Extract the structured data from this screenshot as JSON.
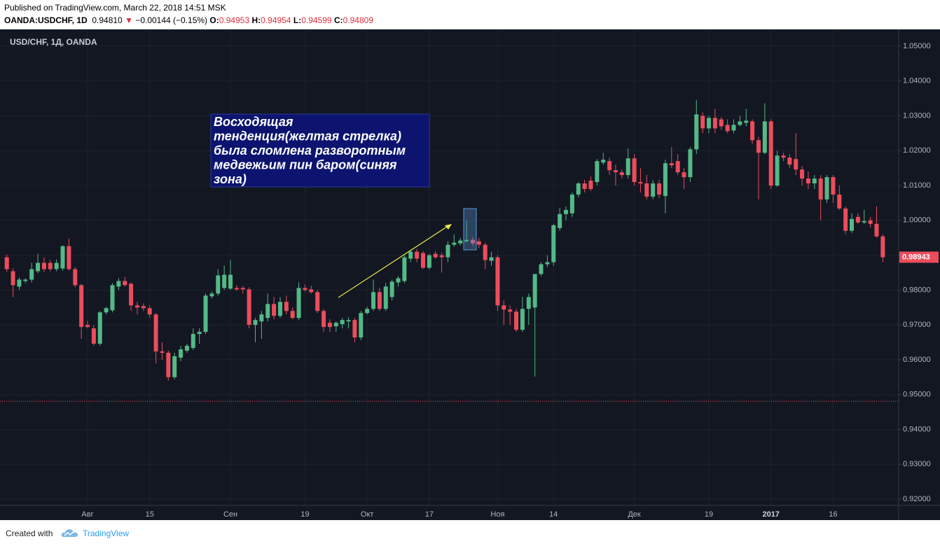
{
  "header": {
    "published": "Published on TradingView.com, March 22, 2018 14:51 MSK",
    "symbol": "OANDA:USDCHF, 1D",
    "price": "0.94810",
    "direction": "▼",
    "change": "−0.00144 (−0.15%)",
    "open_label": "O:",
    "open": "0.94953",
    "high_label": "H:",
    "high": "0.94954",
    "low_label": "L:",
    "low": "0.94599",
    "close_label": "C:",
    "close": "0.94809"
  },
  "footer": {
    "created": "Created with",
    "brand": "TradingView"
  },
  "annotation": {
    "lines": [
      "Восходящая",
      "тенденция(желтая стрелка)",
      "была сломлена разворотным",
      "медвежьим пин баром(синяя",
      "зона)"
    ]
  },
  "chart_data": {
    "type": "candlestick",
    "title": "USD/CHF, 1Д, OANDA",
    "up_color": "#53b987",
    "down_color": "#eb4d5c",
    "price_line": 0.94809,
    "price_line_color": "#eb4d5c",
    "ylim": [
      0.9182,
      1.0544
    ],
    "yticks": [
      {
        "value": 0.92,
        "label": "0.92000"
      },
      {
        "value": 0.93,
        "label": "0.93000"
      },
      {
        "value": 0.94,
        "label": "0.94000"
      },
      {
        "value": 0.95,
        "label": "0.95000"
      },
      {
        "value": 0.96,
        "label": "0.96000"
      },
      {
        "value": 0.97,
        "label": "0.97000"
      },
      {
        "value": 0.98,
        "label": "0.98000"
      },
      {
        "value": 0.99,
        "label": "0.99000"
      },
      {
        "value": 1.0,
        "label": "1.00000"
      },
      {
        "value": 1.01,
        "label": "1.01000"
      },
      {
        "value": 1.02,
        "label": "1.02000"
      },
      {
        "value": 1.03,
        "label": "1.03000"
      },
      {
        "value": 1.04,
        "label": "1.04000"
      },
      {
        "value": 1.05,
        "label": "1.05000"
      }
    ],
    "categories": [
      null,
      null,
      null,
      null,
      null,
      null,
      null,
      null,
      null,
      null,
      null,
      null,
      null,
      "Авг",
      null,
      null,
      null,
      null,
      null,
      null,
      null,
      null,
      null,
      "15",
      null,
      null,
      null,
      null,
      null,
      null,
      null,
      null,
      null,
      null,
      null,
      null,
      "Сен",
      null,
      null,
      null,
      null,
      null,
      null,
      null,
      null,
      null,
      null,
      null,
      "19",
      null,
      null,
      null,
      null,
      null,
      null,
      null,
      null,
      null,
      "Окт",
      null,
      null,
      null,
      null,
      null,
      null,
      null,
      null,
      null,
      "17",
      null,
      null,
      null,
      null,
      null,
      null,
      null,
      null,
      null,
      null,
      "Ноя",
      null,
      null,
      null,
      null,
      null,
      null,
      null,
      null,
      "14",
      null,
      null,
      null,
      null,
      null,
      null,
      null,
      null,
      null,
      null,
      null,
      null,
      "Дек",
      null,
      null,
      null,
      null,
      null,
      null,
      null,
      null,
      null,
      null,
      null,
      "19",
      null,
      null,
      null,
      null,
      null,
      null,
      null,
      null,
      null,
      "2017",
      null,
      null,
      null,
      null,
      null,
      null,
      null,
      null,
      null,
      "16",
      null,
      null,
      null,
      null,
      null,
      null,
      null,
      null
    ],
    "ohlc": [
      [
        0.9894,
        0.9902,
        0.9852,
        0.986
      ],
      [
        0.9854,
        0.9862,
        0.978,
        0.9814
      ],
      [
        0.981,
        0.9836,
        0.98,
        0.983
      ],
      [
        0.9826,
        0.9834,
        0.982,
        0.983
      ],
      [
        0.983,
        0.9878,
        0.9822,
        0.986
      ],
      [
        0.9854,
        0.9904,
        0.9848,
        0.9878
      ],
      [
        0.9878,
        0.9894,
        0.9852,
        0.986
      ],
      [
        0.9878,
        0.9886,
        0.9854,
        0.986
      ],
      [
        0.986,
        0.9888,
        0.9854,
        0.9878
      ],
      [
        0.9862,
        0.9928,
        0.9856,
        0.9926
      ],
      [
        0.9926,
        0.9948,
        0.9856,
        0.986
      ],
      [
        0.986,
        0.9866,
        0.9808,
        0.9814
      ],
      [
        0.9814,
        0.9818,
        0.966,
        0.9694
      ],
      [
        0.97,
        0.9712,
        0.969,
        0.9694
      ],
      [
        0.969,
        0.97,
        0.964,
        0.9646
      ],
      [
        0.9646,
        0.974,
        0.964,
        0.9736
      ],
      [
        0.9736,
        0.9752,
        0.973,
        0.9748
      ],
      [
        0.9742,
        0.982,
        0.9736,
        0.9814
      ],
      [
        0.981,
        0.9834,
        0.98,
        0.9826
      ],
      [
        0.9826,
        0.9838,
        0.981,
        0.9814
      ],
      [
        0.9818,
        0.9822,
        0.974,
        0.9756
      ],
      [
        0.9756,
        0.9766,
        0.973,
        0.975
      ],
      [
        0.9754,
        0.9762,
        0.974,
        0.9748
      ],
      [
        0.9748,
        0.9756,
        0.972,
        0.973
      ],
      [
        0.973,
        0.9734,
        0.959,
        0.9624
      ],
      [
        0.9624,
        0.965,
        0.96,
        0.962
      ],
      [
        0.962,
        0.9626,
        0.954,
        0.955
      ],
      [
        0.955,
        0.962,
        0.9544,
        0.961
      ],
      [
        0.9606,
        0.964,
        0.9596,
        0.963
      ],
      [
        0.9626,
        0.9646,
        0.962,
        0.964
      ],
      [
        0.9634,
        0.969,
        0.9628,
        0.9674
      ],
      [
        0.9674,
        0.969,
        0.9646,
        0.968
      ],
      [
        0.968,
        0.979,
        0.9674,
        0.9784
      ],
      [
        0.9782,
        0.9796,
        0.9776,
        0.979
      ],
      [
        0.979,
        0.986,
        0.9784,
        0.9842
      ],
      [
        0.9806,
        0.987,
        0.98,
        0.9844
      ],
      [
        0.9804,
        0.9886,
        0.98,
        0.9844
      ],
      [
        0.9806,
        0.9814,
        0.9798,
        0.9802
      ],
      [
        0.9806,
        0.9812,
        0.979,
        0.9802
      ],
      [
        0.9802,
        0.9808,
        0.969,
        0.97
      ],
      [
        0.97,
        0.972,
        0.965,
        0.9714
      ],
      [
        0.971,
        0.974,
        0.966,
        0.973
      ],
      [
        0.972,
        0.979,
        0.971,
        0.976
      ],
      [
        0.976,
        0.978,
        0.9716,
        0.9726
      ],
      [
        0.9726,
        0.978,
        0.972,
        0.9766
      ],
      [
        0.9766,
        0.9784,
        0.973,
        0.974
      ],
      [
        0.974,
        0.975,
        0.9716,
        0.972
      ],
      [
        0.972,
        0.9822,
        0.9714,
        0.9806
      ],
      [
        0.9806,
        0.9816,
        0.9796,
        0.98
      ],
      [
        0.9802,
        0.9812,
        0.979,
        0.9794
      ],
      [
        0.9794,
        0.98,
        0.9734,
        0.974
      ],
      [
        0.974,
        0.9746,
        0.968,
        0.9694
      ],
      [
        0.9706,
        0.9716,
        0.968,
        0.9694
      ],
      [
        0.9696,
        0.971,
        0.968,
        0.9706
      ],
      [
        0.9702,
        0.972,
        0.969,
        0.9714
      ],
      [
        0.971,
        0.9722,
        0.969,
        0.9714
      ],
      [
        0.9714,
        0.972,
        0.965,
        0.9664
      ],
      [
        0.9664,
        0.974,
        0.9656,
        0.9734
      ],
      [
        0.9734,
        0.9752,
        0.973,
        0.9746
      ],
      [
        0.9746,
        0.983,
        0.974,
        0.9794
      ],
      [
        0.9794,
        0.9806,
        0.974,
        0.9746
      ],
      [
        0.9746,
        0.982,
        0.974,
        0.981
      ],
      [
        0.978,
        0.983,
        0.977,
        0.9824
      ],
      [
        0.9822,
        0.984,
        0.981,
        0.9834
      ],
      [
        0.9826,
        0.99,
        0.982,
        0.9894
      ],
      [
        0.989,
        0.9916,
        0.988,
        0.991
      ],
      [
        0.991,
        0.9918,
        0.988,
        0.989
      ],
      [
        0.9906,
        0.9912,
        0.986,
        0.9864
      ],
      [
        0.9864,
        0.9904,
        0.986,
        0.99
      ],
      [
        0.9904,
        0.9912,
        0.989,
        0.9894
      ],
      [
        0.99,
        0.9908,
        0.985,
        0.9894
      ],
      [
        0.9894,
        0.994,
        0.988,
        0.993
      ],
      [
        0.993,
        0.996,
        0.9924,
        0.9936
      ],
      [
        0.9934,
        0.995,
        0.9928,
        0.9942
      ],
      [
        0.994,
        1.0,
        0.9936,
        0.9944
      ],
      [
        0.9944,
        0.9952,
        0.9926,
        0.9934
      ],
      [
        0.994,
        0.995,
        0.992,
        0.993
      ],
      [
        0.993,
        0.9936,
        0.986,
        0.9886
      ],
      [
        0.9884,
        0.991,
        0.987,
        0.9894
      ],
      [
        0.9894,
        0.99,
        0.974,
        0.9756
      ],
      [
        0.9756,
        0.977,
        0.97,
        0.9744
      ],
      [
        0.9744,
        0.9756,
        0.97,
        0.9738
      ],
      [
        0.9738,
        0.9746,
        0.968,
        0.9686
      ],
      [
        0.9686,
        0.978,
        0.968,
        0.9746
      ],
      [
        0.9746,
        0.979,
        0.97,
        0.978
      ],
      [
        0.975,
        0.9846,
        0.9552,
        0.9846
      ],
      [
        0.9846,
        0.988,
        0.984,
        0.9874
      ],
      [
        0.9874,
        0.99,
        0.9866,
        0.988
      ],
      [
        0.988,
        0.999,
        0.987,
        0.9986
      ],
      [
        0.9978,
        1.0036,
        0.997,
        1.0018
      ],
      [
        1.0018,
        1.004,
        1.0,
        1.003
      ],
      [
        1.002,
        1.008,
        1.001,
        1.0074
      ],
      [
        1.0074,
        1.011,
        1.0066,
        1.0106
      ],
      [
        1.0106,
        1.0116,
        1.008,
        1.009
      ],
      [
        1.0114,
        1.0126,
        1.0084,
        1.009
      ],
      [
        1.011,
        1.0176,
        1.01,
        1.017
      ],
      [
        1.0166,
        1.0194,
        1.016,
        1.0174
      ],
      [
        1.017,
        1.018,
        1.013,
        1.0144
      ],
      [
        1.0144,
        1.016,
        1.01,
        1.0138
      ],
      [
        1.0138,
        1.0146,
        1.012,
        1.013
      ],
      [
        1.013,
        1.0206,
        1.012,
        1.0178
      ],
      [
        1.0178,
        1.019,
        1.01,
        1.011
      ],
      [
        1.011,
        1.015,
        1.008,
        1.0106
      ],
      [
        1.0106,
        1.013,
        1.006,
        1.0068
      ],
      [
        1.0068,
        1.0116,
        1.006,
        1.0106
      ],
      [
        1.0106,
        1.0116,
        1.0064,
        1.0074
      ],
      [
        1.007,
        1.0174,
        1.002,
        1.0164
      ],
      [
        1.0164,
        1.021,
        1.015,
        1.0158
      ],
      [
        1.017,
        1.019,
        1.013,
        1.0138
      ],
      [
        1.0138,
        1.015,
        1.009,
        1.0124
      ],
      [
        1.0124,
        1.021,
        1.011,
        1.0204
      ],
      [
        1.0204,
        1.0346,
        1.019,
        1.0304
      ],
      [
        1.03,
        1.031,
        1.025,
        1.0264
      ],
      [
        1.0264,
        1.03,
        1.025,
        1.0294
      ],
      [
        1.0294,
        1.032,
        1.025,
        1.0264
      ],
      [
        1.029,
        1.0296,
        1.026,
        1.027
      ],
      [
        1.0274,
        1.029,
        1.025,
        1.0256
      ],
      [
        1.0258,
        1.029,
        1.025,
        1.0274
      ],
      [
        1.0274,
        1.03,
        1.027,
        1.0284
      ],
      [
        1.028,
        1.032,
        1.027,
        1.0286
      ],
      [
        1.0284,
        1.029,
        1.022,
        1.023
      ],
      [
        1.023,
        1.024,
        1.006,
        1.0194
      ],
      [
        1.0194,
        1.0336,
        1.019,
        1.0284
      ],
      [
        1.0284,
        1.029,
        1.009,
        1.01
      ],
      [
        1.01,
        1.02,
        1.0096,
        1.0186
      ],
      [
        1.0186,
        1.0194,
        1.017,
        1.018
      ],
      [
        1.018,
        1.019,
        1.015,
        1.016
      ],
      [
        1.0176,
        1.025,
        1.013,
        1.0146
      ],
      [
        1.0146,
        1.0156,
        1.01,
        1.012
      ],
      [
        1.012,
        1.014,
        1.009,
        1.0106
      ],
      [
        1.0106,
        1.013,
        1.009,
        1.012
      ],
      [
        1.012,
        1.013,
        1.0,
        1.006
      ],
      [
        1.006,
        1.013,
        1.005,
        1.0124
      ],
      [
        1.0124,
        1.013,
        1.005,
        1.0074
      ],
      [
        1.0074,
        1.01,
        1.003,
        1.0034
      ],
      [
        1.0034,
        1.004,
        0.996,
        0.997
      ],
      [
        0.997,
        1.002,
        0.9964,
        1.0004
      ],
      [
        1.001,
        1.002,
        0.999,
        0.9994
      ],
      [
        0.9994,
        1.003,
        0.999,
        0.9998
      ],
      [
        1.0,
        1.001,
        0.998,
        0.999
      ],
      [
        0.999,
        1.004,
        0.995,
        0.9954
      ],
      [
        0.9954,
        0.996,
        0.988,
        0.98943
      ]
    ]
  }
}
